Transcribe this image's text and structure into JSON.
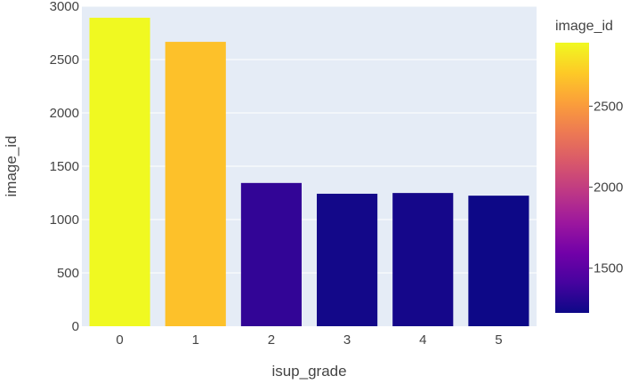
{
  "chart_data": {
    "type": "bar",
    "title": "",
    "xlabel": "isup_grade",
    "ylabel": "image_id",
    "categories": [
      "0",
      "1",
      "2",
      "3",
      "4",
      "5"
    ],
    "values": [
      2892,
      2666,
      1343,
      1242,
      1249,
      1224
    ],
    "ylim": [
      0,
      3000
    ],
    "yticks": [
      0,
      500,
      1000,
      1500,
      2000,
      2500,
      3000
    ],
    "grid": true,
    "plot_background": "#E5ECF6",
    "colorbar": {
      "title": "image_id",
      "range": [
        1224,
        2892
      ],
      "ticks": [
        1500,
        2000,
        2500
      ],
      "colorscale": [
        "#0d0887",
        "#46039f",
        "#7201a8",
        "#9c179e",
        "#bd3786",
        "#d8576b",
        "#ed7953",
        "#fb9f3a",
        "#fdca26",
        "#f0f921"
      ]
    }
  }
}
